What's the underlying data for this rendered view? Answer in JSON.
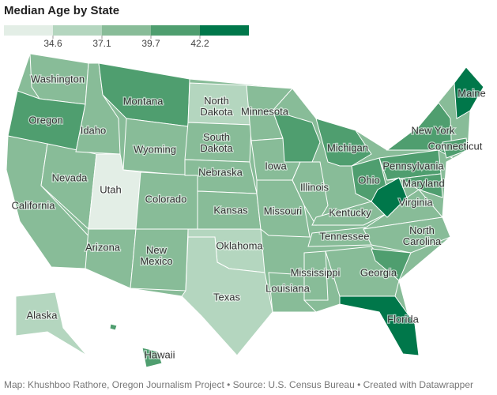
{
  "title": "Median Age by State",
  "legend": {
    "colors": [
      "#e3eee6",
      "#b4d6bf",
      "#88bc98",
      "#4f9e6f",
      "#00774a"
    ],
    "ticks": [
      34.6,
      37.1,
      39.7,
      42.2
    ]
  },
  "states": [
    {
      "name": "Washington",
      "bin": 2
    },
    {
      "name": "Oregon",
      "bin": 3
    },
    {
      "name": "California",
      "bin": 2
    },
    {
      "name": "Nevada",
      "bin": 2
    },
    {
      "name": "Idaho",
      "bin": 2
    },
    {
      "name": "Montana",
      "bin": 3
    },
    {
      "name": "Wyoming",
      "bin": 2
    },
    {
      "name": "Utah",
      "bin": 0
    },
    {
      "name": "Arizona",
      "bin": 2
    },
    {
      "name": "Colorado",
      "bin": 2
    },
    {
      "name": "New Mexico",
      "bin": 2
    },
    {
      "name": "North Dakota",
      "bin": 1
    },
    {
      "name": "South Dakota",
      "bin": 2
    },
    {
      "name": "Nebraska",
      "bin": 2
    },
    {
      "name": "Kansas",
      "bin": 2
    },
    {
      "name": "Oklahoma",
      "bin": 1
    },
    {
      "name": "Texas",
      "bin": 1
    },
    {
      "name": "Minnesota",
      "bin": 2
    },
    {
      "name": "Iowa",
      "bin": 2
    },
    {
      "name": "Missouri",
      "bin": 2
    },
    {
      "name": "Louisiana",
      "bin": 2
    },
    {
      "name": "Mississippi",
      "bin": 2
    },
    {
      "name": "Illinois",
      "bin": 2
    },
    {
      "name": "Michigan",
      "bin": 3
    },
    {
      "name": "Kentucky",
      "bin": 2
    },
    {
      "name": "Tennessee",
      "bin": 2
    },
    {
      "name": "Ohio",
      "bin": 3
    },
    {
      "name": "Virginia",
      "bin": 2
    },
    {
      "name": "North Carolina",
      "bin": 2
    },
    {
      "name": "Georgia",
      "bin": 2
    },
    {
      "name": "Florida",
      "bin": 4
    },
    {
      "name": "Pennsylvania",
      "bin": 3
    },
    {
      "name": "Maryland",
      "bin": 3
    },
    {
      "name": "New York",
      "bin": 3
    },
    {
      "name": "Connecticut",
      "bin": 3
    },
    {
      "name": "Maine",
      "bin": 4
    },
    {
      "name": "Alaska",
      "bin": 1
    },
    {
      "name": "Hawaii",
      "bin": 3
    }
  ],
  "footer": "Map: Khushboo Rathore, Oregon Journalism Project • Source: U.S. Census Bureau • Created with Datawrapper"
}
